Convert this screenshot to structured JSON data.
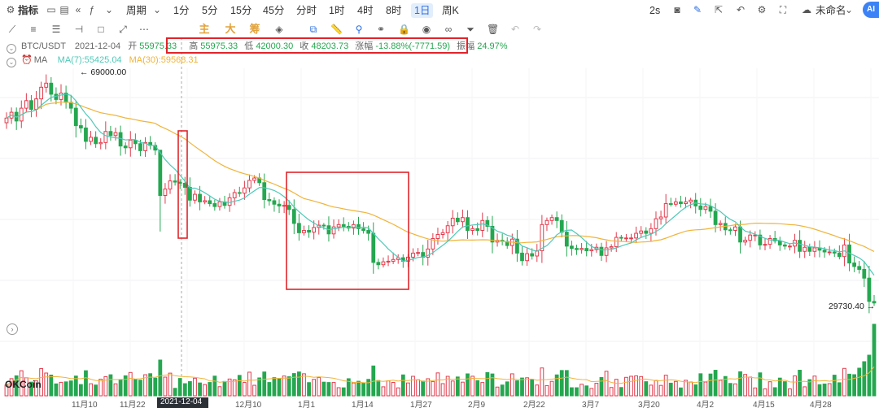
{
  "toolbar": {
    "indicator": "指标",
    "period": "周期",
    "intervals": [
      "1分",
      "5分",
      "15分",
      "45分",
      "分时",
      "1时",
      "4时",
      "8时",
      "1日",
      "周K"
    ],
    "active_interval": "1日",
    "refresh": "2s",
    "layout_name": "未命名",
    "ai": "AI"
  },
  "drawbar": {
    "labels": [
      "主",
      "大",
      "筹"
    ]
  },
  "info": {
    "symbol": "BTC/USDT",
    "date": "2021-12-04",
    "open_label": "开",
    "open": "55975.33",
    "high_label": "高",
    "high": "55975.33",
    "low_label": "低",
    "low": "42000.30",
    "close_label": "收",
    "close": "48203.73",
    "change_label": "涨幅",
    "change": "-13.88%(-7771.59)",
    "amplitude_label": "振幅",
    "amplitude": "24.97%",
    "ma_label": "MA",
    "ma7": "MA(7):55425.04",
    "ma30": "MA(30):59568.31"
  },
  "annotations": {
    "high_marker": "69000.00",
    "low_marker": "29730.40"
  },
  "watermark": "OKCoin",
  "x_axis": {
    "labels": [
      "11月10",
      "11月22",
      "2021-12-04",
      "12月10",
      "1月1",
      "1月14",
      "1月27",
      "2月9",
      "2月22",
      "3月7",
      "3月20",
      "4月2",
      "4月15",
      "4月28"
    ]
  },
  "colors": {
    "up": "#e23c4e",
    "down": "#25a750",
    "ma7": "#4ec9b8",
    "ma30": "#f0b43a",
    "highlight_box": "#e0242a",
    "crosshair": "#999999"
  },
  "chart_data": {
    "type": "candlestick",
    "symbol": "BTC/USDT",
    "interval": "1日",
    "x_range": [
      "2021-11-01",
      "2022-05-12"
    ],
    "y_range": [
      29000,
      69500
    ],
    "key_points": [
      {
        "date": "2021-11-10",
        "high": 69000.0
      },
      {
        "date": "2021-12-04",
        "open": 55975.33,
        "high": 55975.33,
        "low": 42000.3,
        "close": 48203.73
      },
      {
        "date": "2022-05-12",
        "low": 29730.4
      }
    ],
    "close_series": [
      61500,
      62500,
      61000,
      63200,
      64500,
      63000,
      64800,
      66800,
      67500,
      65600,
      64700,
      65800,
      64200,
      63200,
      60200,
      59800,
      57500,
      58200,
      57100,
      57300,
      59200,
      58500,
      59000,
      56700,
      56400,
      57700,
      57100,
      55900,
      57300,
      56800,
      56000,
      48200,
      49300,
      50700,
      50500,
      50300,
      49600,
      47400,
      48400,
      47100,
      47300,
      46800,
      46300,
      47100,
      46500,
      47800,
      48700,
      48600,
      49500,
      50800,
      51200,
      50400,
      47500,
      47300,
      46700,
      46400,
      46500,
      45800,
      43400,
      41800,
      42200,
      41900,
      42700,
      43100,
      43000,
      41600,
      42800,
      43200,
      42900,
      42600,
      43200,
      42500,
      42200,
      41700,
      36700,
      36300,
      36800,
      36900,
      37200,
      37500,
      36900,
      37600,
      38300,
      38400,
      37600,
      39000,
      40800,
      41500,
      41800,
      43000,
      44300,
      43700,
      44400,
      42200,
      42500,
      42200,
      43900,
      42900,
      40200,
      40500,
      40300,
      39600,
      40700,
      38300,
      37000,
      38200,
      37800,
      38700,
      43200,
      43900,
      44400,
      43900,
      41900,
      39500,
      39100,
      38900,
      39100,
      38700,
      38900,
      39300,
      37900,
      39200,
      39400,
      41000,
      40900,
      40900,
      40900,
      41700,
      42100,
      41700,
      42500,
      44200,
      44500,
      46800,
      46700,
      47100,
      46800,
      47100,
      47400,
      46400,
      45800,
      46300,
      45500,
      43200,
      43400,
      42300,
      42200,
      42800,
      40200,
      40500,
      41400,
      41400,
      39700,
      39800,
      40800,
      40400,
      39700,
      39500,
      39500,
      40500,
      38600,
      39300,
      38600,
      39200,
      38800,
      38500,
      38500,
      38300,
      37700,
      39700,
      36600,
      36000,
      35500,
      34000,
      30000,
      29730
    ]
  }
}
